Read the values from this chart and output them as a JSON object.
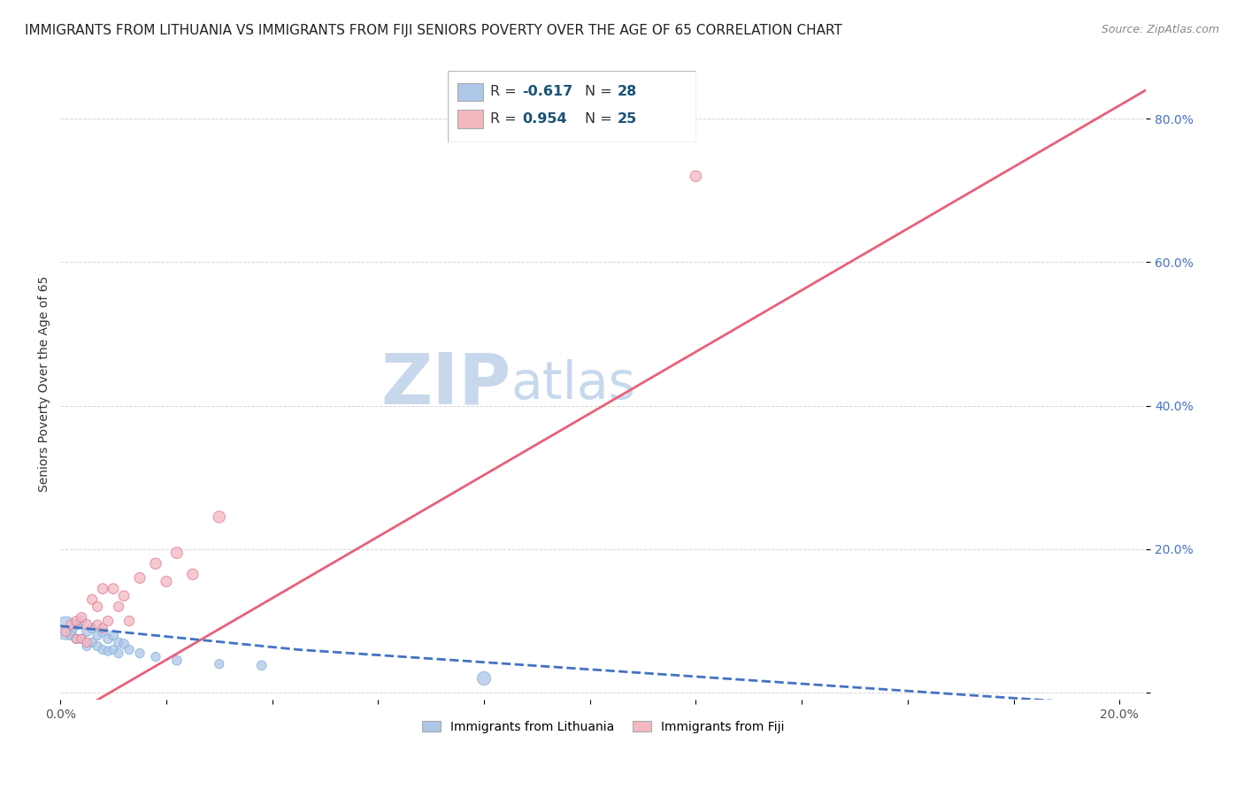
{
  "title": "IMMIGRANTS FROM LITHUANIA VS IMMIGRANTS FROM FIJI SENIORS POVERTY OVER THE AGE OF 65 CORRELATION CHART",
  "source": "Source: ZipAtlas.com",
  "ylabel": "Seniors Poverty Over the Age of 65",
  "xlim": [
    0.0,
    0.205
  ],
  "ylim": [
    -0.01,
    0.87
  ],
  "legend_entries": [
    {
      "label": "Immigrants from Lithuania",
      "color": "#aec6e8",
      "R": "-0.617",
      "N": "28"
    },
    {
      "label": "Immigrants from Fiji",
      "color": "#f4b8c1",
      "R": "0.954",
      "N": "25"
    }
  ],
  "watermark_zip": "ZIP",
  "watermark_atlas": "atlas",
  "watermark_color_zip": "#c8d8ec",
  "watermark_color_atlas": "#c8d8ec",
  "background_color": "#ffffff",
  "grid_color": "#cccccc",
  "title_fontsize": 11,
  "axis_label_fontsize": 10,
  "ytick_color": "#4472c4",
  "lithuania_scatter": {
    "x": [
      0.001,
      0.002,
      0.003,
      0.003,
      0.004,
      0.004,
      0.005,
      0.005,
      0.006,
      0.006,
      0.007,
      0.007,
      0.008,
      0.008,
      0.009,
      0.009,
      0.01,
      0.01,
      0.011,
      0.011,
      0.012,
      0.013,
      0.015,
      0.018,
      0.022,
      0.03,
      0.038,
      0.08
    ],
    "y": [
      0.09,
      0.08,
      0.095,
      0.075,
      0.1,
      0.075,
      0.085,
      0.065,
      0.09,
      0.07,
      0.08,
      0.065,
      0.085,
      0.06,
      0.075,
      0.058,
      0.08,
      0.06,
      0.07,
      0.055,
      0.068,
      0.06,
      0.055,
      0.05,
      0.045,
      0.04,
      0.038,
      0.02
    ],
    "sizes": [
      350,
      60,
      70,
      55,
      65,
      55,
      60,
      55,
      60,
      55,
      60,
      55,
      60,
      55,
      60,
      55,
      60,
      55,
      60,
      55,
      60,
      55,
      55,
      55,
      60,
      55,
      60,
      120
    ],
    "color": "#aec6e8",
    "edge_color": "#7bafd4",
    "line_color": "#4472c4"
  },
  "fiji_scatter": {
    "x": [
      0.001,
      0.002,
      0.003,
      0.003,
      0.004,
      0.004,
      0.005,
      0.005,
      0.006,
      0.007,
      0.007,
      0.008,
      0.008,
      0.009,
      0.01,
      0.011,
      0.012,
      0.013,
      0.015,
      0.018,
      0.02,
      0.022,
      0.025,
      0.03,
      0.12
    ],
    "y": [
      0.085,
      0.095,
      0.1,
      0.075,
      0.105,
      0.075,
      0.095,
      0.07,
      0.13,
      0.12,
      0.095,
      0.145,
      0.09,
      0.1,
      0.145,
      0.12,
      0.135,
      0.1,
      0.16,
      0.18,
      0.155,
      0.195,
      0.165,
      0.245,
      0.72
    ],
    "sizes": [
      60,
      60,
      60,
      55,
      65,
      55,
      65,
      55,
      65,
      65,
      55,
      70,
      55,
      65,
      70,
      65,
      70,
      65,
      75,
      80,
      75,
      85,
      80,
      90,
      80
    ],
    "color": "#f4b8c1",
    "edge_color": "#e07090",
    "line_color": "#e8607a"
  },
  "R_label_color": "#1a5276",
  "N_label_color": "#1a5276"
}
